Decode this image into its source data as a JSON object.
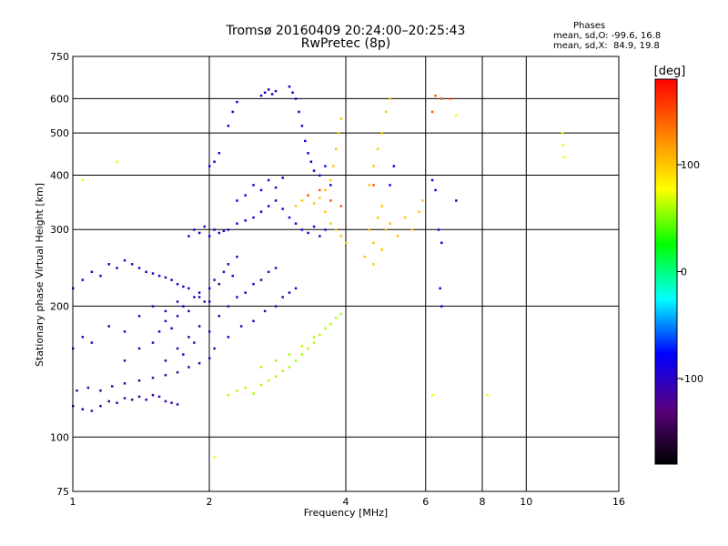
{
  "chart_data": {
    "type": "scatter",
    "title": "Tromsø 20160409 20:24:00–20:25:43",
    "subtitle": "RwPretec (8p)",
    "xlabel": "Frequency [MHz]",
    "ylabel": "Stationary phase Virtual Height [km]",
    "x_scale": "log",
    "y_scale": "log",
    "xlim": [
      1,
      16
    ],
    "ylim": [
      75,
      750
    ],
    "x_ticks": [
      1,
      2,
      4,
      6,
      8,
      10,
      16
    ],
    "x_gridlines": [
      2,
      4,
      6,
      8,
      10
    ],
    "y_ticks": [
      75,
      100,
      200,
      300,
      400,
      500,
      600,
      750
    ],
    "y_gridlines": [
      100,
      200,
      300,
      400,
      500,
      600
    ],
    "grid": true,
    "stats": {
      "heading": "Phases",
      "line1": "mean, sd,O: -99.6, 16.8",
      "line2": "mean, sd,X:  84.9, 19.8"
    },
    "colorbar": {
      "label": "[deg]",
      "range": [
        -180,
        180
      ],
      "ticks": [
        100,
        0,
        -100
      ],
      "colors": [
        "#000000",
        "#5a0080",
        "#0000ff",
        "#00ffff",
        "#00ff00",
        "#ffff00",
        "#ff8000",
        "#ff0000"
      ]
    },
    "series": [
      {
        "trace": "o-mode-low-branch",
        "phase": -110,
        "points": [
          [
            1.0,
            118
          ],
          [
            1.05,
            116
          ],
          [
            1.1,
            115
          ],
          [
            1.15,
            118
          ],
          [
            1.2,
            121
          ],
          [
            1.25,
            120
          ],
          [
            1.3,
            123
          ],
          [
            1.35,
            122
          ],
          [
            1.4,
            124
          ],
          [
            1.45,
            122
          ],
          [
            1.5,
            125
          ],
          [
            1.55,
            124
          ],
          [
            1.6,
            121
          ],
          [
            1.65,
            120
          ],
          [
            1.7,
            119
          ],
          [
            1.02,
            128
          ],
          [
            1.08,
            130
          ],
          [
            1.15,
            128
          ],
          [
            1.22,
            131
          ],
          [
            1.3,
            133
          ],
          [
            1.4,
            135
          ],
          [
            1.5,
            137
          ],
          [
            1.6,
            139
          ],
          [
            1.7,
            141
          ],
          [
            1.8,
            145
          ],
          [
            1.9,
            148
          ],
          [
            2.0,
            152
          ]
        ]
      },
      {
        "trace": "o-mode-dense-cloud",
        "phase": -105,
        "points": [
          [
            1.3,
            150
          ],
          [
            1.4,
            160
          ],
          [
            1.5,
            165
          ],
          [
            1.55,
            175
          ],
          [
            1.6,
            185
          ],
          [
            1.65,
            178
          ],
          [
            1.7,
            190
          ],
          [
            1.75,
            200
          ],
          [
            1.8,
            195
          ],
          [
            1.85,
            210
          ],
          [
            1.9,
            215
          ],
          [
            1.95,
            205
          ],
          [
            2.0,
            220
          ],
          [
            2.05,
            230
          ],
          [
            2.1,
            225
          ],
          [
            2.15,
            240
          ],
          [
            2.2,
            250
          ],
          [
            2.25,
            235
          ],
          [
            2.3,
            260
          ],
          [
            1.7,
            160
          ],
          [
            1.8,
            170
          ],
          [
            1.9,
            180
          ],
          [
            2.0,
            175
          ],
          [
            2.1,
            190
          ],
          [
            2.2,
            200
          ],
          [
            2.3,
            210
          ],
          [
            2.4,
            215
          ],
          [
            2.5,
            225
          ],
          [
            2.6,
            230
          ],
          [
            2.7,
            240
          ],
          [
            2.8,
            245
          ],
          [
            1.6,
            150
          ],
          [
            1.75,
            155
          ],
          [
            1.85,
            165
          ],
          [
            2.05,
            160
          ],
          [
            2.2,
            170
          ],
          [
            2.35,
            180
          ],
          [
            2.5,
            185
          ],
          [
            2.65,
            195
          ],
          [
            2.8,
            200
          ],
          [
            2.9,
            210
          ],
          [
            3.0,
            215
          ],
          [
            3.1,
            220
          ]
        ]
      },
      {
        "trace": "o-mode-f-layer",
        "phase": -95,
        "points": [
          [
            1.8,
            290
          ],
          [
            1.85,
            300
          ],
          [
            1.9,
            295
          ],
          [
            1.95,
            305
          ],
          [
            2.0,
            290
          ],
          [
            2.05,
            300
          ],
          [
            2.1,
            295
          ],
          [
            2.15,
            298
          ],
          [
            2.2,
            300
          ],
          [
            2.3,
            310
          ],
          [
            2.4,
            315
          ],
          [
            2.5,
            320
          ],
          [
            2.6,
            330
          ],
          [
            2.7,
            340
          ],
          [
            2.8,
            350
          ],
          [
            2.9,
            335
          ],
          [
            3.0,
            320
          ],
          [
            3.1,
            310
          ],
          [
            3.2,
            300
          ],
          [
            3.3,
            295
          ],
          [
            3.4,
            305
          ],
          [
            3.5,
            290
          ],
          [
            3.6,
            300
          ],
          [
            2.3,
            350
          ],
          [
            2.4,
            360
          ],
          [
            2.5,
            380
          ],
          [
            2.6,
            370
          ],
          [
            2.7,
            390
          ],
          [
            2.8,
            375
          ],
          [
            2.9,
            395
          ],
          [
            2.0,
            420
          ],
          [
            2.05,
            430
          ],
          [
            2.1,
            450
          ],
          [
            2.2,
            520
          ],
          [
            2.25,
            560
          ],
          [
            2.3,
            590
          ],
          [
            2.6,
            610
          ],
          [
            2.65,
            620
          ],
          [
            2.7,
            630
          ],
          [
            2.75,
            615
          ],
          [
            2.8,
            625
          ],
          [
            3.0,
            640
          ],
          [
            3.05,
            620
          ],
          [
            3.1,
            600
          ],
          [
            3.15,
            560
          ],
          [
            3.2,
            520
          ],
          [
            3.25,
            480
          ],
          [
            3.3,
            450
          ],
          [
            3.35,
            430
          ],
          [
            3.4,
            410
          ],
          [
            3.5,
            400
          ],
          [
            3.6,
            420
          ],
          [
            3.7,
            380
          ]
        ]
      },
      {
        "trace": "o-mode-sparse-low",
        "phase": -100,
        "points": [
          [
            1.0,
            220
          ],
          [
            1.05,
            230
          ],
          [
            1.1,
            240
          ],
          [
            1.15,
            235
          ],
          [
            1.2,
            250
          ],
          [
            1.25,
            245
          ],
          [
            1.3,
            255
          ],
          [
            1.35,
            250
          ],
          [
            1.4,
            245
          ],
          [
            1.45,
            240
          ],
          [
            1.5,
            238
          ],
          [
            1.55,
            235
          ],
          [
            1.6,
            233
          ],
          [
            1.65,
            230
          ],
          [
            1.7,
            225
          ],
          [
            1.75,
            222
          ],
          [
            1.8,
            220
          ],
          [
            1.9,
            210
          ],
          [
            2.0,
            205
          ],
          [
            1.0,
            160
          ],
          [
            1.05,
            170
          ],
          [
            1.1,
            165
          ],
          [
            1.2,
            180
          ],
          [
            1.3,
            175
          ],
          [
            1.4,
            190
          ],
          [
            1.5,
            200
          ],
          [
            1.6,
            195
          ],
          [
            1.7,
            205
          ]
        ]
      },
      {
        "trace": "x-mode-e-region",
        "phase": 60,
        "points": [
          [
            2.2,
            125
          ],
          [
            2.3,
            128
          ],
          [
            2.4,
            130
          ],
          [
            2.5,
            126
          ],
          [
            2.6,
            132
          ],
          [
            2.7,
            135
          ],
          [
            2.8,
            138
          ],
          [
            2.9,
            142
          ],
          [
            3.0,
            145
          ],
          [
            3.1,
            150
          ],
          [
            3.2,
            155
          ],
          [
            3.3,
            160
          ],
          [
            3.4,
            165
          ],
          [
            3.5,
            172
          ],
          [
            3.6,
            178
          ],
          [
            3.7,
            182
          ],
          [
            3.8,
            188
          ],
          [
            3.9,
            192
          ],
          [
            2.6,
            145
          ],
          [
            2.8,
            150
          ],
          [
            3.0,
            155
          ],
          [
            3.2,
            162
          ],
          [
            3.4,
            170
          ]
        ]
      },
      {
        "trace": "x-mode-f-layer",
        "phase": 100,
        "points": [
          [
            3.1,
            340
          ],
          [
            3.2,
            350
          ],
          [
            3.3,
            360
          ],
          [
            3.4,
            345
          ],
          [
            3.5,
            355
          ],
          [
            3.6,
            370
          ],
          [
            3.7,
            390
          ],
          [
            3.75,
            420
          ],
          [
            3.8,
            460
          ],
          [
            3.85,
            500
          ],
          [
            3.9,
            540
          ],
          [
            3.6,
            330
          ],
          [
            3.7,
            310
          ],
          [
            3.8,
            300
          ],
          [
            3.9,
            290
          ],
          [
            4.0,
            280
          ],
          [
            4.5,
            300
          ],
          [
            4.6,
            280
          ],
          [
            4.7,
            320
          ],
          [
            4.8,
            340
          ],
          [
            4.9,
            300
          ],
          [
            5.0,
            310
          ],
          [
            5.2,
            290
          ],
          [
            5.4,
            320
          ],
          [
            5.6,
            300
          ],
          [
            5.8,
            330
          ],
          [
            5.9,
            350
          ],
          [
            4.4,
            260
          ],
          [
            4.6,
            250
          ],
          [
            4.8,
            270
          ],
          [
            4.5,
            380
          ],
          [
            4.6,
            420
          ],
          [
            4.7,
            460
          ],
          [
            4.8,
            500
          ],
          [
            4.9,
            560
          ],
          [
            5.0,
            600
          ]
        ]
      },
      {
        "trace": "x-mode-orange",
        "phase": 145,
        "points": [
          [
            3.3,
            360
          ],
          [
            3.5,
            370
          ],
          [
            3.7,
            350
          ],
          [
            3.9,
            340
          ],
          [
            4.6,
            380
          ],
          [
            6.2,
            560
          ],
          [
            6.3,
            610
          ],
          [
            6.5,
            600
          ],
          [
            6.8,
            600
          ]
        ]
      },
      {
        "trace": "scattered-high-freq",
        "phase": -90,
        "points": [
          [
            6.2,
            390
          ],
          [
            6.3,
            370
          ],
          [
            6.4,
            300
          ],
          [
            6.5,
            280
          ],
          [
            6.45,
            220
          ],
          [
            6.5,
            200
          ],
          [
            7.0,
            350
          ],
          [
            5.0,
            380
          ],
          [
            5.1,
            420
          ]
        ]
      },
      {
        "trace": "isolated",
        "phase": 80,
        "points": [
          [
            12.0,
            500
          ],
          [
            12.05,
            470
          ],
          [
            12.1,
            440
          ],
          [
            7.0,
            550
          ],
          [
            8.2,
            125
          ],
          [
            6.2,
            125
          ],
          [
            1.25,
            430
          ],
          [
            2.05,
            90
          ],
          [
            1.05,
            390
          ]
        ]
      }
    ]
  }
}
